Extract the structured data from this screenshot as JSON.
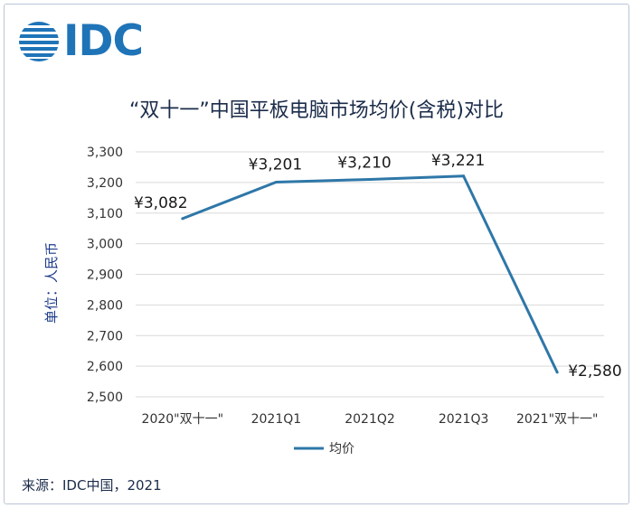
{
  "logo": {
    "text": "IDC"
  },
  "chart_data": {
    "type": "line",
    "title": "“双十一”中国平板电脑市场均价(含税)对比",
    "ylabel": "单位：人民币",
    "categories": [
      "2020\"双十一\"",
      "2021Q1",
      "2021Q2",
      "2021Q3",
      "2021\"双十一\""
    ],
    "series": [
      {
        "name": "均价",
        "values": [
          3082,
          3201,
          3210,
          3221,
          2580
        ],
        "color": "#2e77a8"
      }
    ],
    "data_labels": [
      "¥3,082",
      "¥3,201",
      "¥3,210",
      "¥3,221",
      "¥2,580"
    ],
    "yticks": [
      "3,300",
      "3,200",
      "3,100",
      "3,000",
      "2,900",
      "2,800",
      "2,700",
      "2,600",
      "2,500"
    ],
    "ylim": [
      2500,
      3300
    ],
    "grid": true,
    "legend_position": "bottom"
  },
  "footer": {
    "source": "来源：IDC中国，2021"
  }
}
